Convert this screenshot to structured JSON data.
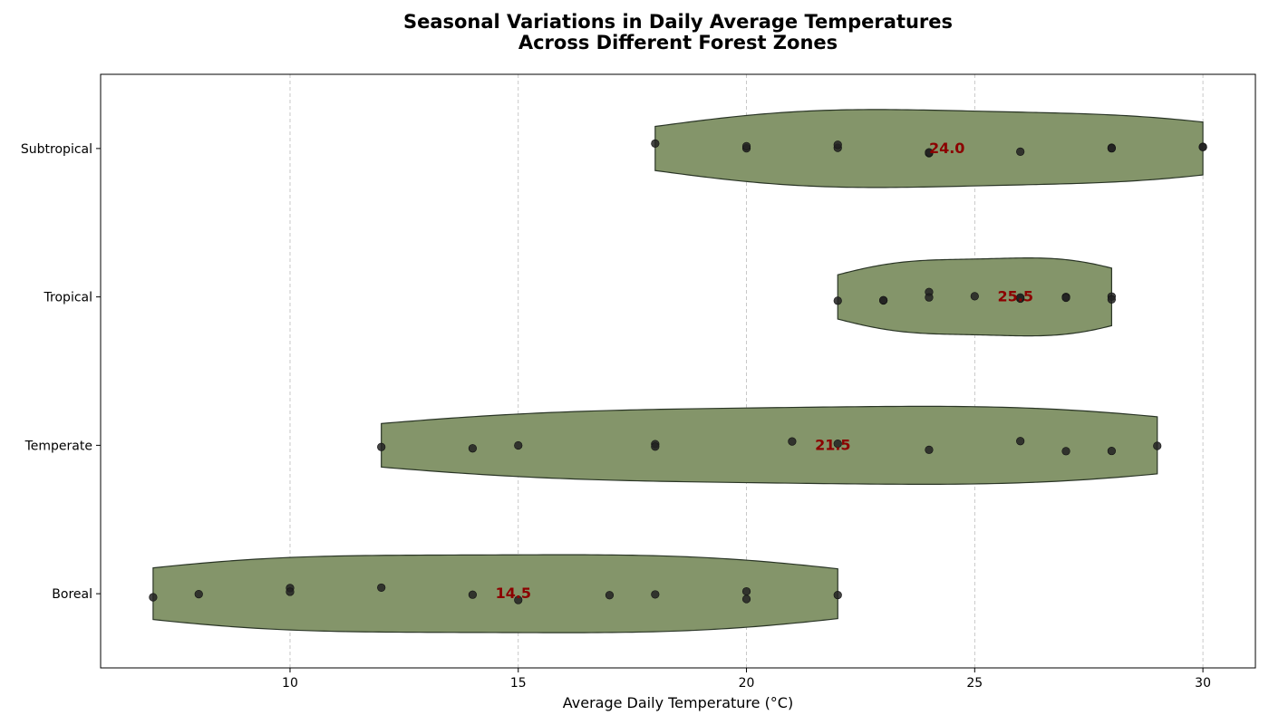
{
  "chart_data": {
    "type": "violin",
    "title_lines": [
      "Seasonal Variations in Daily Average Temperatures",
      "Across Different Forest Zones"
    ],
    "xlabel": "Average Daily Temperature (°C)",
    "ylabel": "",
    "xlim": [
      5.85,
      31.15
    ],
    "xticks": [
      10,
      15,
      20,
      25,
      30
    ],
    "grid": "x-dashed",
    "colors": {
      "violin_fill": "#84956a",
      "violin_edge": "#2a3526",
      "point": "#222222",
      "median_text": "#8b0000",
      "grid": "#bbbbbb"
    },
    "categories": [
      "Subtropical",
      "Tropical",
      "Temperate",
      "Boreal"
    ],
    "series": [
      {
        "name": "Subtropical",
        "values": [
          18,
          20,
          20,
          22,
          22,
          24,
          24,
          26,
          28,
          28,
          30,
          30
        ],
        "median": "24.0",
        "range": [
          18,
          30
        ]
      },
      {
        "name": "Tropical",
        "values": [
          22,
          23,
          23,
          24,
          24,
          25,
          26,
          26,
          27,
          27,
          28,
          28
        ],
        "median": "25.5",
        "range": [
          22,
          28
        ]
      },
      {
        "name": "Temperate",
        "values": [
          12,
          14,
          15,
          18,
          18,
          21,
          22,
          24,
          26,
          27,
          28,
          29
        ],
        "median": "21.5",
        "range": [
          12,
          29
        ]
      },
      {
        "name": "Boreal",
        "values": [
          7,
          8,
          10,
          10,
          12,
          14,
          15,
          17,
          18,
          20,
          20,
          22
        ],
        "median": "14.5",
        "range": [
          7,
          22
        ]
      }
    ]
  }
}
